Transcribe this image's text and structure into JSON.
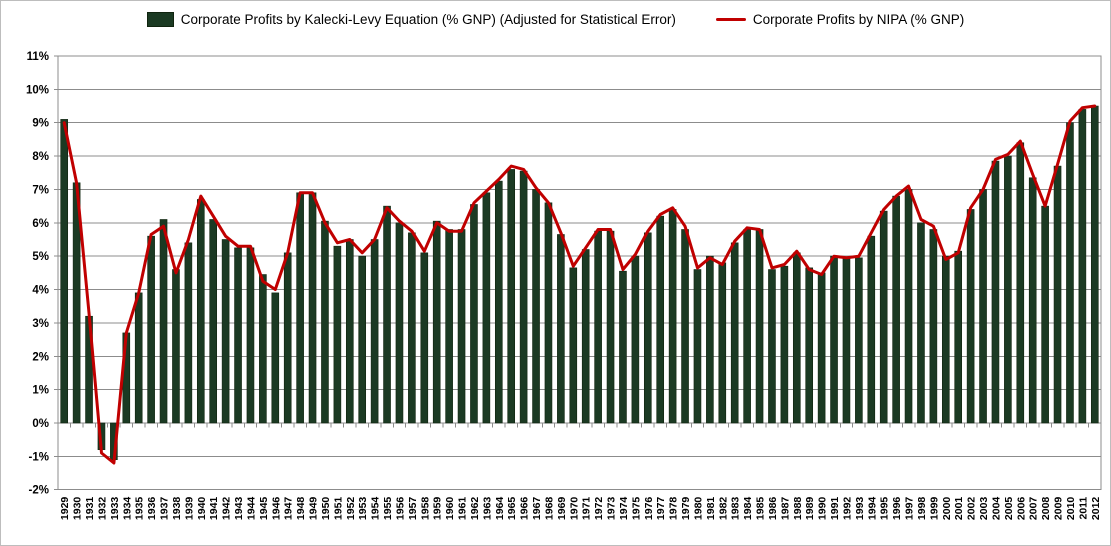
{
  "legend": {
    "bar_label": "Corporate Profits by Kalecki-Levy Equation (% GNP) (Adjusted for Statistical Error)",
    "line_label": "Corporate Profits by NIPA (% GNP)"
  },
  "colors": {
    "bar": "#1b3a23",
    "bar_border": "#10240f",
    "line": "#c00000",
    "grid": "#8c8c8c",
    "frame": "#8c8c8c",
    "background": "#ffffff"
  },
  "chart_data": {
    "type": "bar",
    "title": "",
    "xlabel": "",
    "ylabel": "",
    "ylim": [
      -2,
      11
    ],
    "ytick_step": 1,
    "grid": true,
    "legend_position": "top",
    "y_ticks": [
      "11%",
      "10%",
      "9%",
      "8%",
      "7%",
      "6%",
      "5%",
      "4%",
      "3%",
      "2%",
      "1%",
      "0%",
      "-1%",
      "-2%"
    ],
    "categories": [
      "1929",
      "1930",
      "1931",
      "1932",
      "1933",
      "1934",
      "1935",
      "1936",
      "1937",
      "1938",
      "1939",
      "1940",
      "1941",
      "1942",
      "1943",
      "1944",
      "1945",
      "1946",
      "1947",
      "1948",
      "1949",
      "1950",
      "1951",
      "1952",
      "1953",
      "1954",
      "1955",
      "1956",
      "1957",
      "1958",
      "1959",
      "1960",
      "1961",
      "1962",
      "1963",
      "1964",
      "1965",
      "1966",
      "1967",
      "1968",
      "1969",
      "1970",
      "1971",
      "1972",
      "1973",
      "1974",
      "1975",
      "1976",
      "1977",
      "1978",
      "1979",
      "1980",
      "1981",
      "1982",
      "1983",
      "1984",
      "1985",
      "1986",
      "1987",
      "1988",
      "1989",
      "1990",
      "1991",
      "1992",
      "1993",
      "1994",
      "1995",
      "1996",
      "1997",
      "1998",
      "1999",
      "2000",
      "2001",
      "2002",
      "2003",
      "2004",
      "2005",
      "2006",
      "2007",
      "2008",
      "2009",
      "2010",
      "2011",
      "2012"
    ],
    "series": [
      {
        "name": "Corporate Profits by Kalecki-Levy Equation (% GNP) (Adjusted for Statistical Error)",
        "type": "bar",
        "color": "#1b3a23",
        "values": [
          9.1,
          7.2,
          3.2,
          -0.8,
          -1.1,
          2.7,
          3.9,
          5.6,
          6.1,
          4.6,
          5.4,
          6.7,
          6.1,
          5.5,
          5.25,
          5.25,
          4.45,
          3.9,
          5.1,
          6.9,
          6.9,
          6.05,
          5.3,
          5.5,
          5.0,
          5.5,
          6.5,
          6.0,
          5.7,
          5.1,
          6.05,
          5.8,
          5.8,
          6.55,
          6.9,
          7.25,
          7.6,
          7.55,
          7.0,
          6.6,
          5.65,
          4.65,
          5.2,
          5.75,
          5.75,
          4.55,
          5.0,
          5.7,
          6.2,
          6.4,
          5.8,
          4.6,
          5.0,
          4.8,
          5.4,
          5.8,
          5.8,
          4.6,
          4.7,
          5.1,
          4.65,
          4.5,
          5.0,
          4.95,
          4.95,
          5.6,
          6.35,
          6.8,
          7.0,
          6.0,
          5.8,
          5.0,
          5.15,
          6.4,
          7.0,
          7.85,
          8.0,
          8.4,
          7.35,
          6.5,
          7.7,
          9.0,
          9.4,
          9.5
        ]
      },
      {
        "name": "Corporate Profits by NIPA (% GNP)",
        "type": "line",
        "color": "#c00000",
        "values": [
          9.0,
          7.2,
          3.3,
          -0.9,
          -1.2,
          2.7,
          3.9,
          5.65,
          5.9,
          4.5,
          5.5,
          6.8,
          6.2,
          5.6,
          5.3,
          5.3,
          4.25,
          4.0,
          5.1,
          6.9,
          6.9,
          6.0,
          5.4,
          5.5,
          5.1,
          5.5,
          6.45,
          6.05,
          5.75,
          5.15,
          6.0,
          5.75,
          5.75,
          6.6,
          6.95,
          7.3,
          7.7,
          7.6,
          7.05,
          6.6,
          5.7,
          4.7,
          5.25,
          5.8,
          5.8,
          4.6,
          5.05,
          5.75,
          6.25,
          6.45,
          5.9,
          4.65,
          4.95,
          4.75,
          5.45,
          5.85,
          5.8,
          4.65,
          4.75,
          5.15,
          4.6,
          4.45,
          5.0,
          4.95,
          5.0,
          5.7,
          6.4,
          6.8,
          7.1,
          6.1,
          5.9,
          4.9,
          5.1,
          6.45,
          7.0,
          7.9,
          8.05,
          8.45,
          7.45,
          6.5,
          7.75,
          9.05,
          9.45,
          9.5
        ]
      }
    ]
  }
}
